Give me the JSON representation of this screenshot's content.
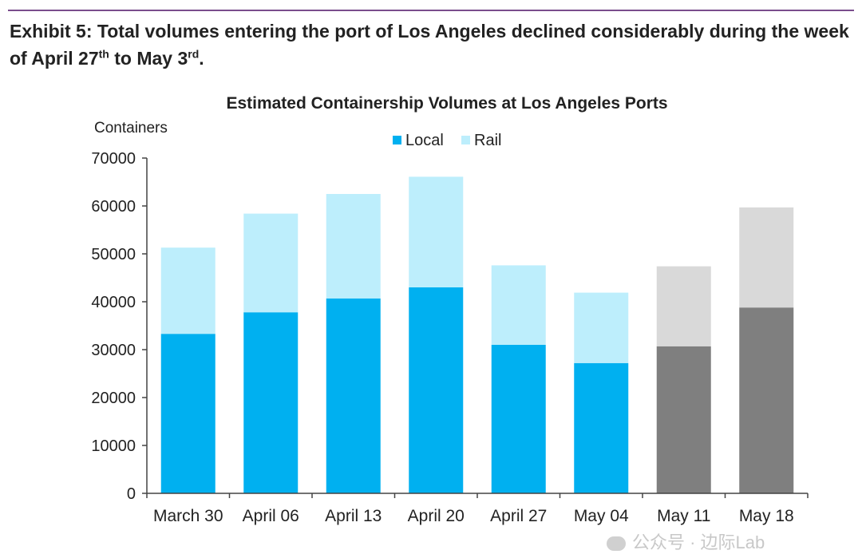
{
  "exhibit": {
    "title_main": "Exhibit 5: Total volumes entering the port of Los Angeles declined considerably during the week of April 27",
    "title_sup1": "th",
    "title_mid": " to May 3",
    "title_sup2": "rd",
    "title_end": ".",
    "rule_color": "#7a4d8c"
  },
  "watermark": {
    "text": "公众号 · 边际Lab"
  },
  "chart_data": {
    "type": "bar",
    "stacked": true,
    "title": "Estimated Containership  Volumes at Los Angeles Ports",
    "ylabel": "Containers",
    "xlabel": "",
    "ylim": [
      0,
      70000
    ],
    "yticks": [
      0,
      10000,
      20000,
      30000,
      40000,
      50000,
      60000,
      70000
    ],
    "grid": false,
    "legend_position": "top-center",
    "categories": [
      "March 30",
      "April 06",
      "April 13",
      "April 20",
      "April 27",
      "May 04",
      "May 11",
      "May 18"
    ],
    "series": [
      {
        "name": "Local",
        "values": [
          33300,
          37800,
          40700,
          43000,
          31000,
          27200,
          30700,
          38800
        ],
        "color": "#00b0f0"
      },
      {
        "name": "Rail",
        "values": [
          18000,
          20600,
          21800,
          23100,
          16600,
          14700,
          16700,
          20900
        ],
        "color": "#bdeefc"
      }
    ],
    "estimated_categories": [
      "May 11",
      "May 18"
    ],
    "estimated_colors": {
      "Local": "#7f7f7f",
      "Rail": "#d9d9d9"
    }
  }
}
